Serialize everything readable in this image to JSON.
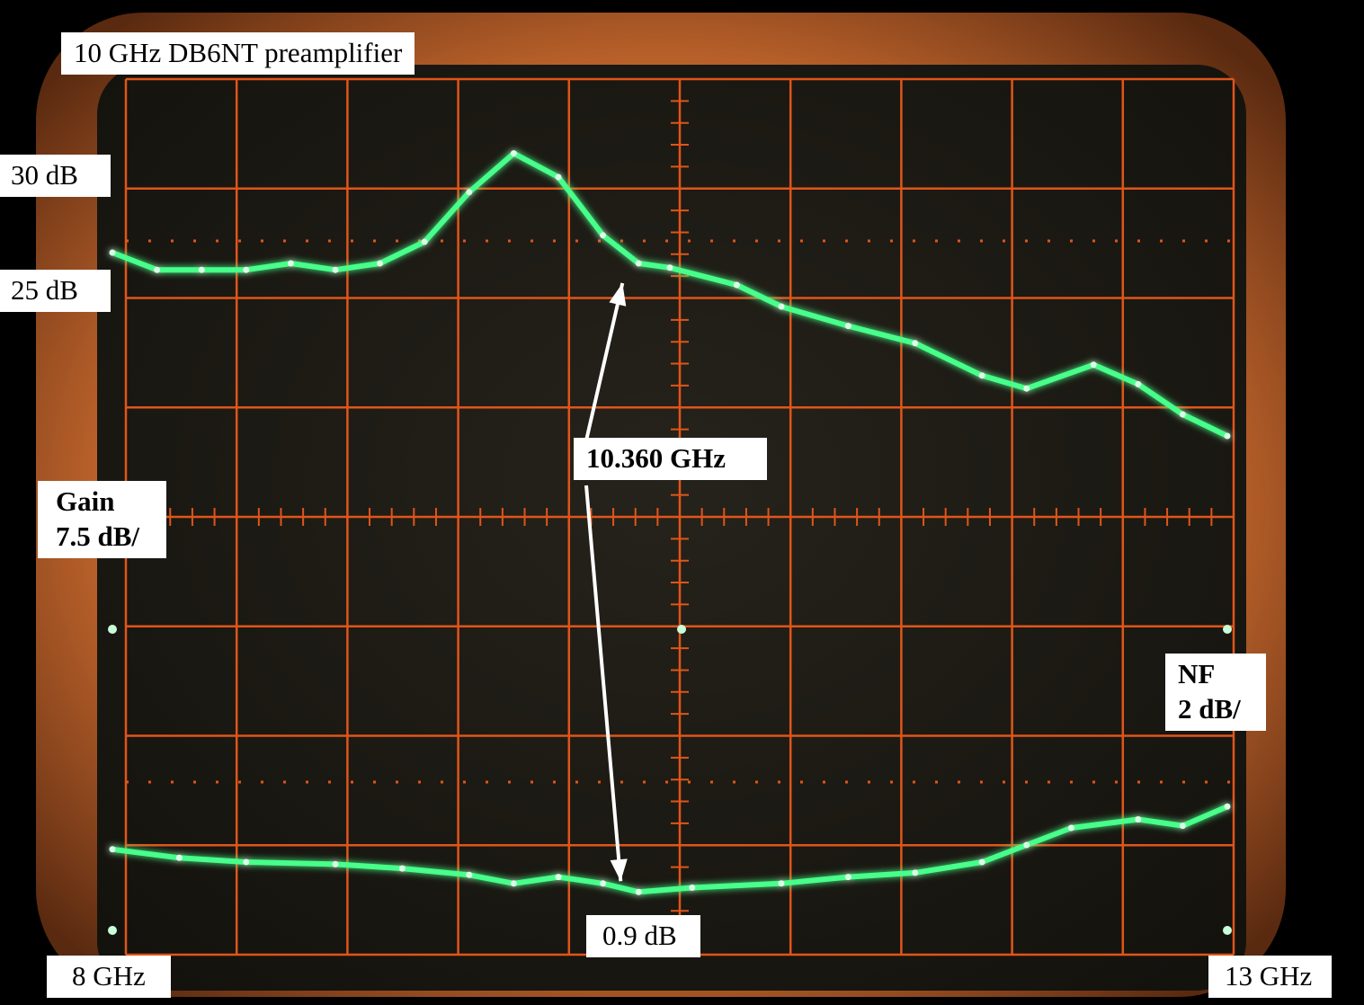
{
  "chart_data": {
    "type": "line",
    "title": "10 GHz DB6NT preamplifier",
    "x_start_label": "8 GHz",
    "x_end_label": "13 GHz",
    "xlim": [
      8,
      13
    ],
    "grid": true,
    "marker_frequency_label": "10.360 GHz",
    "gain_scale": {
      "label_line1": "Gain",
      "label_line2": "7.5 dB/"
    },
    "nf_scale": {
      "label_line1": "NF",
      "label_line2": "2 dB/"
    },
    "gain_ref_labels": {
      "upper": "30 dB",
      "lower": "25 dB"
    },
    "nf_min_label": "0.9 dB",
    "series": [
      {
        "name": "Gain",
        "x": [
          8.0,
          8.2,
          8.4,
          8.6,
          8.8,
          9.0,
          9.2,
          9.4,
          9.6,
          9.8,
          10.0,
          10.2,
          10.36,
          10.5,
          10.8,
          11.0,
          11.3,
          11.6,
          11.9,
          12.1,
          12.4,
          12.6,
          12.8,
          13.0
        ],
        "y": [
          26.0,
          25.2,
          25.2,
          25.2,
          25.5,
          25.2,
          25.5,
          26.5,
          28.8,
          30.6,
          29.5,
          26.8,
          25.5,
          25.3,
          24.5,
          23.5,
          22.6,
          21.8,
          20.3,
          19.7,
          20.8,
          19.9,
          18.5,
          17.5
        ]
      },
      {
        "name": "NF",
        "x": [
          8.0,
          8.3,
          8.6,
          9.0,
          9.3,
          9.6,
          9.8,
          10.0,
          10.2,
          10.36,
          10.6,
          11.0,
          11.3,
          11.6,
          11.9,
          12.1,
          12.3,
          12.6,
          12.8,
          13.0
        ],
        "y": [
          1.9,
          1.7,
          1.6,
          1.55,
          1.45,
          1.3,
          1.1,
          1.25,
          1.1,
          0.9,
          1.0,
          1.1,
          1.25,
          1.35,
          1.6,
          2.0,
          2.4,
          2.6,
          2.45,
          2.9
        ]
      }
    ]
  },
  "colors": {
    "bezel": "#c0692e",
    "screen": "#1a1812",
    "graticule": "#e0551a",
    "trace": "#47ff8a",
    "arrow": "#ffffff"
  }
}
